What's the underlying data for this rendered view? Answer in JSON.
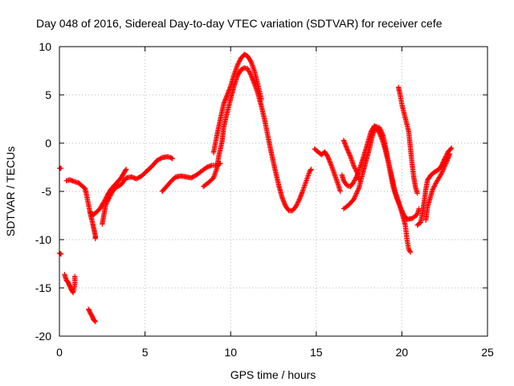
{
  "chart_data": {
    "type": "scatter",
    "title": "Day 048 of 2016, Sidereal Day-to-day VTEC variation (SDTVAR) for receiver cefe",
    "xlabel": "GPS time / hours",
    "ylabel": "SDTVAR / TECUs",
    "xlim": [
      0,
      25
    ],
    "ylim": [
      -20,
      10
    ],
    "xticks": [
      "0",
      "5",
      "10",
      "15",
      "20",
      "25"
    ],
    "yticks": [
      "10",
      "5",
      "0",
      "-5",
      "-10",
      "-15",
      "-20"
    ],
    "grid": true,
    "marker": "plus",
    "color": "#ff0000",
    "series": [
      {
        "name": "SDTVAR",
        "segments": [
          [
            [
              0.0,
              -2.6
            ],
            [
              0.1,
              -2.6
            ]
          ],
          [
            [
              0.0,
              -11.4
            ],
            [
              0.1,
              -11.5
            ]
          ],
          [
            [
              0.3,
              -13.6
            ],
            [
              0.4,
              -14.2
            ],
            [
              0.5,
              -14.4
            ],
            [
              0.6,
              -14.8
            ],
            [
              0.7,
              -15.2
            ],
            [
              0.8,
              -15.5
            ],
            [
              0.9,
              -14.6
            ],
            [
              0.9,
              -13.8
            ]
          ],
          [
            [
              1.7,
              -17.2
            ],
            [
              1.8,
              -17.6
            ],
            [
              1.9,
              -17.9
            ],
            [
              2.0,
              -18.3
            ],
            [
              2.1,
              -18.5
            ]
          ],
          [
            [
              0.4,
              -3.9
            ],
            [
              0.6,
              -3.8
            ],
            [
              0.9,
              -4.0
            ],
            [
              1.1,
              -4.1
            ],
            [
              1.3,
              -4.4
            ],
            [
              1.5,
              -4.7
            ],
            [
              1.6,
              -5.5
            ],
            [
              1.7,
              -6.4
            ],
            [
              1.8,
              -7.3
            ],
            [
              1.9,
              -8.0
            ],
            [
              2.0,
              -8.8
            ],
            [
              2.1,
              -9.6
            ],
            [
              2.1,
              -9.9
            ]
          ],
          [
            [
              1.8,
              -7.2
            ],
            [
              2.0,
              -7.4
            ],
            [
              2.2,
              -7.1
            ],
            [
              2.4,
              -6.7
            ],
            [
              2.6,
              -6.1
            ],
            [
              2.8,
              -5.4
            ],
            [
              3.0,
              -4.8
            ],
            [
              3.3,
              -4.2
            ],
            [
              3.6,
              -3.6
            ],
            [
              3.8,
              -3.0
            ],
            [
              3.9,
              -2.7
            ]
          ],
          [
            [
              2.5,
              -8.4
            ],
            [
              2.6,
              -7.4
            ],
            [
              2.7,
              -6.4
            ],
            [
              2.9,
              -5.7
            ],
            [
              3.1,
              -5.0
            ],
            [
              3.3,
              -4.6
            ],
            [
              3.6,
              -4.3
            ],
            [
              3.9,
              -3.6
            ],
            [
              4.2,
              -3.5
            ],
            [
              4.5,
              -3.7
            ],
            [
              4.8,
              -3.4
            ],
            [
              5.1,
              -2.9
            ],
            [
              5.4,
              -2.4
            ],
            [
              5.7,
              -1.8
            ],
            [
              6.0,
              -1.5
            ],
            [
              6.3,
              -1.4
            ],
            [
              6.5,
              -1.5
            ],
            [
              6.6,
              -1.6
            ]
          ],
          [
            [
              6.0,
              -5.0
            ],
            [
              6.2,
              -4.6
            ],
            [
              6.4,
              -4.2
            ],
            [
              6.6,
              -3.8
            ],
            [
              6.8,
              -3.5
            ],
            [
              7.1,
              -3.4
            ],
            [
              7.4,
              -3.5
            ],
            [
              7.7,
              -3.6
            ],
            [
              8.0,
              -3.3
            ],
            [
              8.3,
              -2.9
            ],
            [
              8.6,
              -2.5
            ],
            [
              8.9,
              -2.3
            ],
            [
              9.2,
              -2.3
            ],
            [
              9.4,
              -2.1
            ]
          ],
          [
            [
              8.4,
              -4.5
            ],
            [
              8.7,
              -4.1
            ],
            [
              9.0,
              -3.6
            ],
            [
              9.2,
              -2.6
            ],
            [
              9.3,
              -1.4
            ],
            [
              9.5,
              0.2
            ],
            [
              9.6,
              1.7
            ],
            [
              9.8,
              3.2
            ],
            [
              10.0,
              4.6
            ],
            [
              10.2,
              5.9
            ],
            [
              10.4,
              7.0
            ],
            [
              10.6,
              7.6
            ],
            [
              10.8,
              7.8
            ],
            [
              11.0,
              7.7
            ],
            [
              11.2,
              7.0
            ],
            [
              11.4,
              6.1
            ],
            [
              11.6,
              5.1
            ],
            [
              11.8,
              3.8
            ],
            [
              12.0,
              2.3
            ],
            [
              12.2,
              0.5
            ],
            [
              12.4,
              -1.2
            ],
            [
              12.6,
              -2.8
            ],
            [
              12.8,
              -4.3
            ],
            [
              13.0,
              -5.6
            ],
            [
              13.2,
              -6.5
            ],
            [
              13.4,
              -7.0
            ],
            [
              13.6,
              -7.0
            ],
            [
              13.8,
              -6.6
            ],
            [
              14.0,
              -5.9
            ],
            [
              14.2,
              -5.0
            ],
            [
              14.4,
              -4.0
            ],
            [
              14.6,
              -3.0
            ],
            [
              14.7,
              -2.7
            ]
          ],
          [
            [
              9.0,
              -1.0
            ],
            [
              9.2,
              0.8
            ],
            [
              9.4,
              2.5
            ],
            [
              9.6,
              4.1
            ],
            [
              9.8,
              5.0
            ],
            [
              10.0,
              5.9
            ],
            [
              10.2,
              7.1
            ],
            [
              10.4,
              8.1
            ],
            [
              10.6,
              8.8
            ],
            [
              10.8,
              9.2
            ],
            [
              11.0,
              9.0
            ],
            [
              11.2,
              8.4
            ],
            [
              11.4,
              7.4
            ],
            [
              11.6,
              6.0
            ],
            [
              11.8,
              4.5
            ]
          ],
          [
            [
              14.9,
              -0.6
            ],
            [
              15.1,
              -0.9
            ],
            [
              15.3,
              -1.2
            ],
            [
              15.5,
              -0.9
            ],
            [
              15.7,
              -1.5
            ],
            [
              15.9,
              -2.4
            ],
            [
              16.1,
              -3.4
            ],
            [
              16.3,
              -4.4
            ],
            [
              16.4,
              -5.0
            ]
          ],
          [
            [
              16.5,
              -3.3
            ],
            [
              16.6,
              -3.9
            ],
            [
              16.8,
              -4.4
            ],
            [
              17.0,
              -4.5
            ],
            [
              17.2,
              -4.0
            ],
            [
              17.4,
              -3.3
            ],
            [
              17.6,
              -2.3
            ],
            [
              17.8,
              -1.2
            ],
            [
              18.0,
              0.0
            ],
            [
              18.2,
              1.2
            ],
            [
              18.4,
              1.8
            ],
            [
              18.6,
              1.4
            ],
            [
              18.8,
              0.6
            ],
            [
              19.0,
              -0.5
            ],
            [
              19.2,
              -1.9
            ],
            [
              19.4,
              -3.4
            ],
            [
              19.6,
              -5.0
            ],
            [
              19.8,
              -6.0
            ],
            [
              20.0,
              -7.2
            ],
            [
              20.2,
              -8.5
            ],
            [
              20.3,
              -10.0
            ],
            [
              20.4,
              -11.0
            ],
            [
              20.5,
              -11.3
            ]
          ],
          [
            [
              16.6,
              0.3
            ],
            [
              16.8,
              -0.6
            ],
            [
              17.0,
              -1.4
            ],
            [
              17.2,
              -2.4
            ],
            [
              17.4,
              -3.1
            ],
            [
              17.5,
              -3.8
            ]
          ],
          [
            [
              16.6,
              -6.8
            ],
            [
              16.9,
              -6.4
            ],
            [
              17.2,
              -5.8
            ],
            [
              17.5,
              -4.6
            ],
            [
              17.7,
              -3.2
            ],
            [
              17.9,
              -1.9
            ],
            [
              18.1,
              -0.6
            ],
            [
              18.3,
              0.9
            ],
            [
              18.5,
              1.7
            ],
            [
              18.7,
              1.6
            ],
            [
              18.9,
              0.8
            ],
            [
              19.1,
              -0.9
            ],
            [
              19.3,
              -2.8
            ],
            [
              19.5,
              -4.6
            ],
            [
              19.7,
              -5.7
            ],
            [
              19.9,
              -6.6
            ],
            [
              20.1,
              -7.4
            ],
            [
              20.3,
              -7.9
            ],
            [
              20.6,
              -7.8
            ],
            [
              20.9,
              -7.4
            ],
            [
              21.0,
              -6.8
            ]
          ],
          [
            [
              19.8,
              5.8
            ],
            [
              19.9,
              5.0
            ],
            [
              20.0,
              4.0
            ],
            [
              20.2,
              2.6
            ],
            [
              20.4,
              1.2
            ],
            [
              20.5,
              -0.5
            ],
            [
              20.6,
              -2.2
            ],
            [
              20.7,
              -3.6
            ],
            [
              20.8,
              -4.6
            ],
            [
              20.9,
              -5.2
            ]
          ],
          [
            [
              20.9,
              -8.5
            ],
            [
              21.1,
              -8.2
            ],
            [
              21.2,
              -7.3
            ],
            [
              21.3,
              -6.1
            ],
            [
              21.4,
              -4.8
            ],
            [
              21.5,
              -3.8
            ],
            [
              21.7,
              -3.3
            ],
            [
              21.9,
              -3.0
            ],
            [
              22.1,
              -2.8
            ],
            [
              22.3,
              -2.4
            ],
            [
              22.5,
              -1.6
            ],
            [
              22.7,
              -0.9
            ],
            [
              22.9,
              -0.5
            ]
          ],
          [
            [
              21.4,
              -8.0
            ],
            [
              21.5,
              -6.6
            ],
            [
              21.7,
              -5.4
            ],
            [
              21.8,
              -4.8
            ],
            [
              22.0,
              -4.1
            ],
            [
              22.3,
              -3.2
            ],
            [
              22.6,
              -2.0
            ],
            [
              22.8,
              -1.1
            ]
          ]
        ]
      }
    ]
  }
}
